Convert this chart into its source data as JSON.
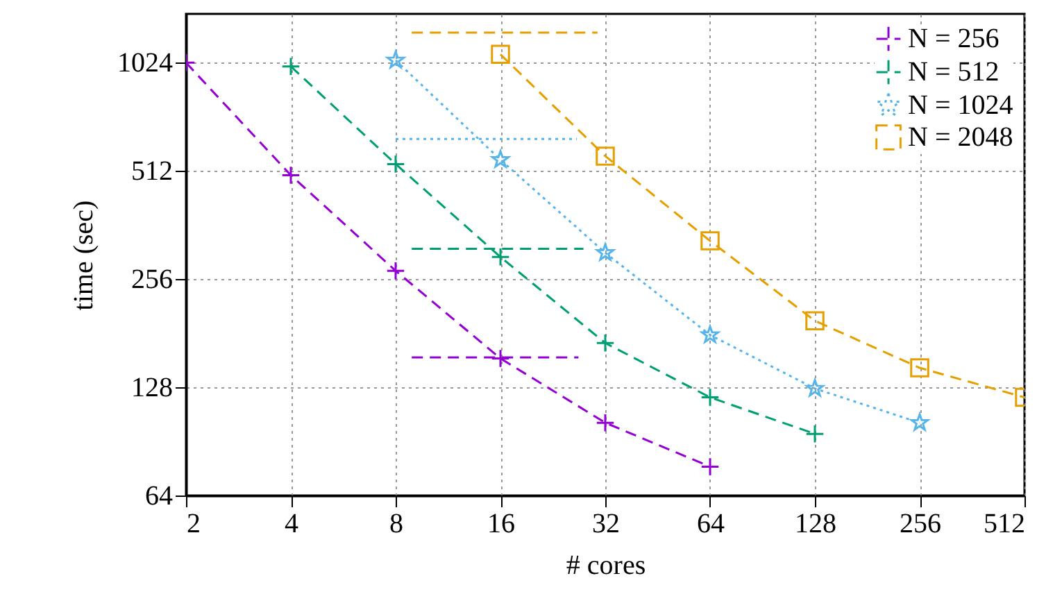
{
  "chart_data": {
    "type": "line",
    "xlabel": "# cores",
    "ylabel": "time (sec)",
    "log": "xy",
    "grid": true,
    "legend": "top right",
    "xlim": [
      2,
      512
    ],
    "ylim": [
      64,
      1400
    ],
    "xticks": [
      2,
      4,
      8,
      16,
      32,
      64,
      128,
      256,
      512
    ],
    "yticks": [
      64,
      128,
      256,
      512,
      1024
    ],
    "series": [
      {
        "name": "N = 256",
        "color": "#9400d3",
        "marker": "cross",
        "line_style": "dashed",
        "x": [
          2,
          4,
          8,
          16,
          32,
          64
        ],
        "values": [
          1024,
          498,
          270,
          154,
          102,
          77
        ]
      },
      {
        "name": "N = 512",
        "color": "#009e73",
        "marker": "cross",
        "line_style": "dashed",
        "x": [
          4,
          8,
          16,
          32,
          64,
          128
        ],
        "values": [
          1000,
          535,
          295,
          170,
          120,
          95
        ]
      },
      {
        "name": "N = 1024",
        "color": "#56b4e9",
        "marker": "star",
        "line_style": "dotted",
        "x": [
          8,
          16,
          32,
          64,
          128,
          256
        ],
        "values": [
          1040,
          550,
          303,
          179,
          127,
          102
        ]
      },
      {
        "name": "N = 2048",
        "color": "#e69f00",
        "marker": "square",
        "line_style": "dashed",
        "x": [
          16,
          32,
          64,
          128,
          256,
          512
        ],
        "values": [
          1080,
          563,
          327,
          196,
          145,
          120
        ]
      },
      {
        "color": "#9400d3",
        "line_style": "dashed",
        "x": [
          8.9,
          26.8
        ],
        "values": [
          155,
          155
        ]
      },
      {
        "color": "#009e73",
        "line_style": "dashed",
        "x": [
          8.9,
          27.7
        ],
        "values": [
          311,
          311
        ]
      },
      {
        "color": "#56b4e9",
        "line_style": "dotted",
        "x": [
          8,
          26.5
        ],
        "values": [
          628,
          628
        ]
      },
      {
        "color": "#e69f00",
        "line_style": "dashed",
        "x": [
          8.9,
          30.4
        ],
        "values": [
          1242,
          1242
        ]
      }
    ]
  }
}
